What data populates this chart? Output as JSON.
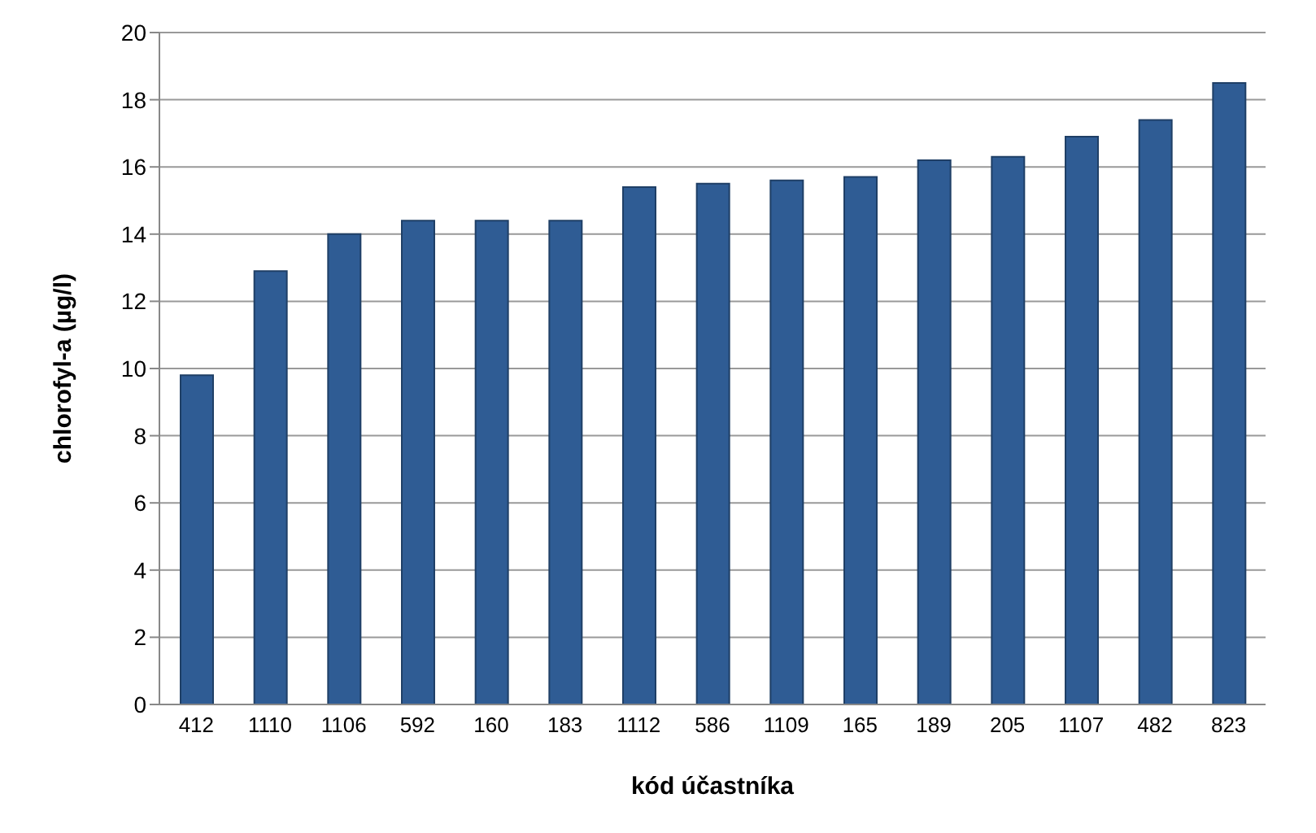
{
  "chart_data": {
    "type": "bar",
    "xlabel": "kód účastníka",
    "ylabel": "chlorofyl-a (µg/l)",
    "categories": [
      "412",
      "1110",
      "1106",
      "592",
      "160",
      "183",
      "1112",
      "586",
      "1109",
      "165",
      "189",
      "205",
      "1107",
      "482",
      "823"
    ],
    "values": [
      9.8,
      12.9,
      14.0,
      14.4,
      14.4,
      14.4,
      15.4,
      15.5,
      15.6,
      15.7,
      16.2,
      16.3,
      16.9,
      17.4,
      18.5
    ],
    "color": "#2f5c94",
    "ylim": [
      0,
      20
    ],
    "yticks": [
      0,
      2,
      4,
      6,
      8,
      10,
      12,
      14,
      16,
      18,
      20
    ],
    "grid": "y",
    "legend": false
  }
}
